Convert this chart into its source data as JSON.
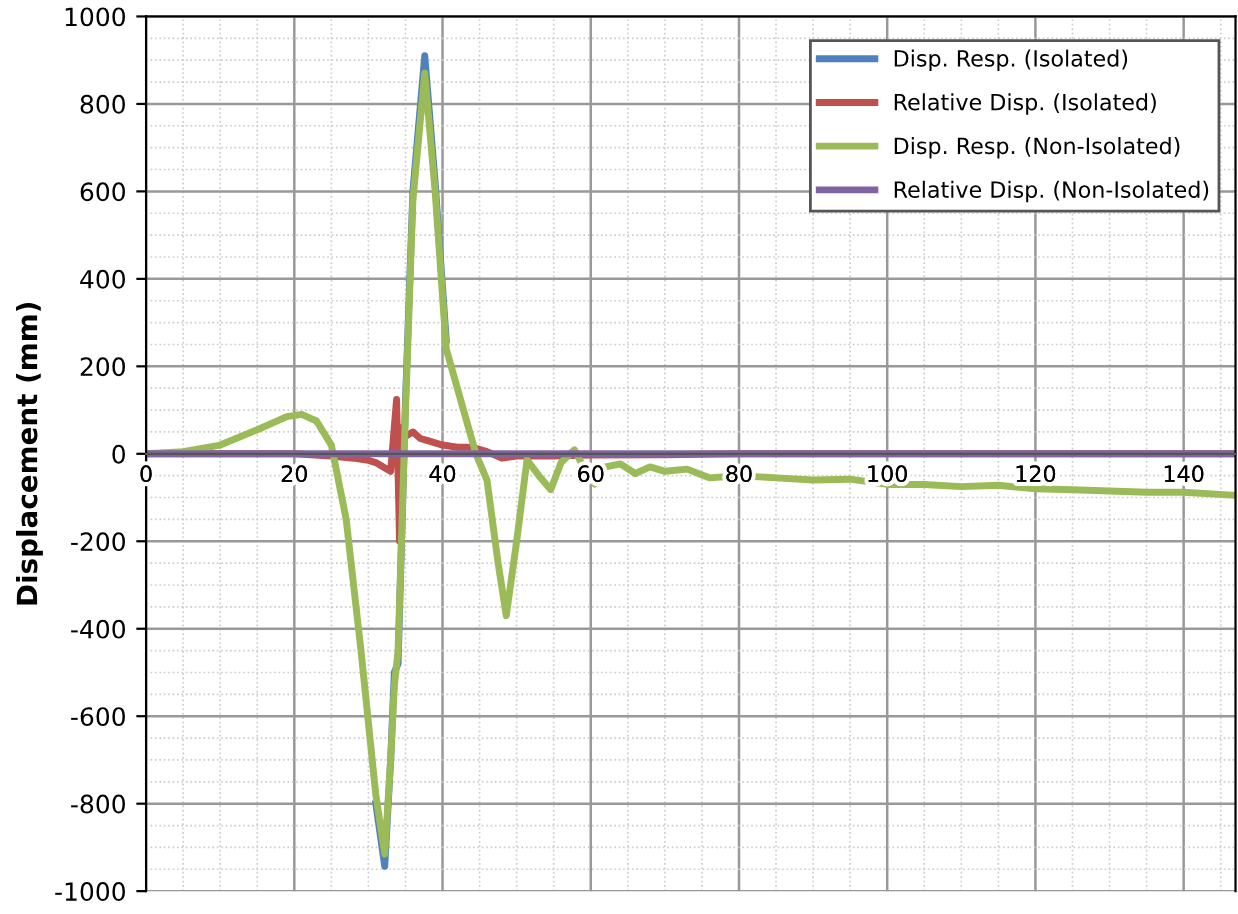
{
  "chart_data": {
    "type": "line",
    "ylabel": "Displacement (mm)",
    "xlim": [
      0,
      147
    ],
    "xticks": [
      0,
      20,
      40,
      60,
      80,
      100,
      120,
      140
    ],
    "ylim": [
      -1000,
      1000
    ],
    "yticks": [
      -1000,
      -800,
      -600,
      -400,
      -200,
      0,
      200,
      400,
      600,
      800,
      1000
    ],
    "grid": true,
    "legend": "top right",
    "marker": "none",
    "line_style": "solid",
    "series": [
      {
        "name": "Disp. Resp. (Isolated)",
        "color": "#4f81bd",
        "x": [
          31,
          32.2,
          33,
          33.5,
          34,
          35,
          36,
          37.6,
          39,
          40.5
        ],
        "values": [
          -800,
          -943,
          -700,
          -500,
          -480,
          120,
          600,
          910,
          620,
          260
        ]
      },
      {
        "name": "Relative Disp. (Isolated)",
        "color": "#c0504d",
        "x": [
          0,
          10,
          20,
          25,
          28,
          30,
          31,
          32,
          33,
          33.8,
          34.2,
          34.6,
          35,
          36,
          37,
          38,
          39,
          40,
          42,
          44,
          46,
          48,
          50,
          55,
          60,
          70,
          80,
          90,
          100,
          147
        ],
        "values": [
          0,
          0,
          0,
          -5,
          -10,
          -15,
          -20,
          -30,
          -40,
          124,
          -200,
          60,
          40,
          50,
          35,
          30,
          25,
          20,
          15,
          15,
          5,
          -10,
          -5,
          -5,
          -3,
          -2,
          0,
          0,
          0,
          0
        ]
      },
      {
        "name": "Disp. Resp. (Non-Isolated)",
        "color": "#9bbb59",
        "x": [
          0,
          5,
          10,
          15,
          19,
          21,
          23,
          25,
          27,
          29,
          31,
          32.2,
          33,
          33.5,
          34,
          35,
          36,
          37.6,
          39,
          40.5,
          42,
          43.2,
          44.5,
          46,
          47.5,
          48.6,
          50,
          51.4,
          53,
          54.6,
          56,
          57.8,
          59,
          60.5,
          62,
          64,
          66,
          68,
          70,
          73,
          76,
          80,
          85,
          90,
          95,
          100,
          105,
          110,
          115,
          120,
          125,
          130,
          135,
          140,
          147
        ],
        "values": [
          0,
          5,
          20,
          55,
          85,
          90,
          75,
          20,
          -150,
          -450,
          -780,
          -915,
          -700,
          -530,
          -450,
          100,
          580,
          870,
          600,
          240,
          150,
          78,
          0,
          -60,
          -250,
          -370,
          -200,
          -14,
          -50,
          -82,
          -20,
          9,
          -30,
          -69,
          -30,
          -23,
          -45,
          -30,
          -40,
          -35,
          -55,
          -50,
          -55,
          -60,
          -58,
          -70,
          -70,
          -75,
          -72,
          -80,
          -82,
          -85,
          -88,
          -88,
          -95
        ]
      },
      {
        "name": "Relative Disp. (Non-Isolated)",
        "color": "#8064a2",
        "x": [
          0,
          147
        ],
        "values": [
          0,
          0
        ]
      }
    ]
  }
}
